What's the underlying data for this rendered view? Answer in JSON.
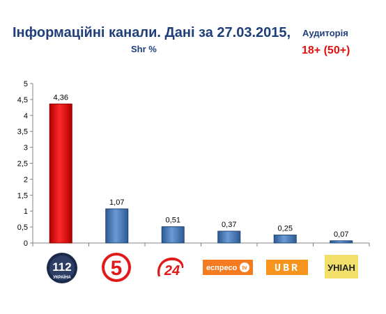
{
  "header": {
    "title": "Інформаційні канали. Дані за 27.03.2015,",
    "subtitle": "Shr %",
    "audience_label": "Аудиторія",
    "audience_value": "18+ (50+)"
  },
  "chart_data": {
    "type": "bar",
    "categories": [
      "112 Україна",
      "5 канал",
      "24",
      "еспресо tv",
      "UBR",
      "УНІАН"
    ],
    "values": [
      4.36,
      1.07,
      0.51,
      0.37,
      0.25,
      0.07
    ],
    "data_labels": [
      "4,36",
      "1,07",
      "0,51",
      "0,37",
      "0,25",
      "0,07"
    ],
    "ylim": [
      0,
      5
    ],
    "yticks": [
      0,
      0.5,
      1,
      1.5,
      2,
      2.5,
      3,
      3.5,
      4,
      4.5,
      5
    ],
    "ytick_labels": [
      "0",
      "0,5",
      "1",
      "1,5",
      "2",
      "2,5",
      "3",
      "3,5",
      "4",
      "4,5",
      "5"
    ],
    "bar_colors": [
      "#e11919",
      "#4f81bd",
      "#4f81bd",
      "#4f81bd",
      "#4f81bd",
      "#4f81bd"
    ],
    "grid": false,
    "title": "Інформаційні канали. Дані за 27.03.2015,",
    "ylabel": "Shr %"
  },
  "logos": {
    "l112_num": "112",
    "l112_sub": "УКРАЇНА",
    "l5": "5",
    "l24": "24",
    "espreso": "еспресо",
    "espreso_tv": "tv",
    "ubr": "UBR",
    "unian": "УНІАН"
  }
}
